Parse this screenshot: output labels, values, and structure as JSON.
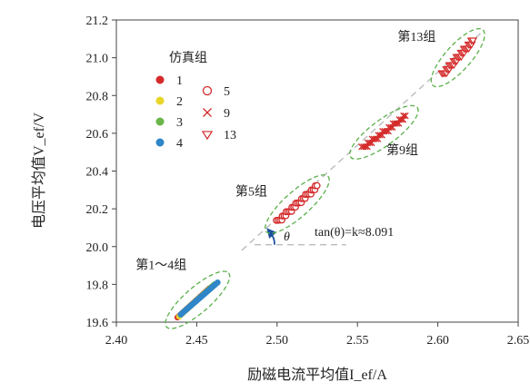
{
  "chart_data": {
    "type": "scatter",
    "xlabel": "励磁电流平均值I_ef/A",
    "ylabel": "电压平均值V_ef/V",
    "xlim": [
      2.4,
      2.65
    ],
    "ylim": [
      19.6,
      21.2
    ],
    "x_ticks": [
      "2.40",
      "2.45",
      "2.50",
      "2.55",
      "2.60",
      "2.65"
    ],
    "y_ticks": [
      "19.6",
      "19.8",
      "20.0",
      "20.2",
      "20.4",
      "20.6",
      "20.8",
      "21.0",
      "21.2"
    ],
    "legend": {
      "title": "仿真组",
      "entries": [
        {
          "label": "1",
          "marker": "circle-filled",
          "color": "#d42a2a"
        },
        {
          "label": "2",
          "marker": "circle-filled",
          "color": "#e8d52a"
        },
        {
          "label": "3",
          "marker": "circle-filled",
          "color": "#6ab44a"
        },
        {
          "label": "4",
          "marker": "circle-filled",
          "color": "#2f86c8"
        },
        {
          "label": "5",
          "marker": "circle-open",
          "color": "#d42a2a"
        },
        {
          "label": "9",
          "marker": "cross",
          "color": "#d42a2a"
        },
        {
          "label": "13",
          "marker": "triangle-open",
          "color": "#d42a2a"
        }
      ]
    },
    "series": [
      {
        "name": "1",
        "marker": "circle-filled",
        "color": "#d42a2a",
        "x_range": [
          2.438,
          2.458
        ],
        "y_range": [
          19.625,
          19.78
        ]
      },
      {
        "name": "2",
        "marker": "circle-filled",
        "color": "#e8d52a",
        "x_range": [
          2.439,
          2.459
        ],
        "y_range": [
          19.63,
          19.785
        ]
      },
      {
        "name": "3",
        "marker": "circle-filled",
        "color": "#6ab44a",
        "x_range": [
          2.44,
          2.461
        ],
        "y_range": [
          19.64,
          19.8
        ]
      },
      {
        "name": "4",
        "marker": "circle-filled",
        "color": "#2f86c8",
        "x_range": [
          2.44,
          2.463
        ],
        "y_range": [
          19.64,
          19.81
        ]
      },
      {
        "name": "5",
        "marker": "circle-open",
        "color": "#d42a2a",
        "x_range": [
          2.5,
          2.525
        ],
        "y_range": [
          20.13,
          20.32
        ]
      },
      {
        "name": "9",
        "marker": "cross",
        "color": "#d42a2a",
        "x_range": [
          2.553,
          2.58
        ],
        "y_range": [
          20.52,
          20.69
        ]
      },
      {
        "name": "13",
        "marker": "triangle-open",
        "color": "#d42a2a",
        "x_range": [
          2.603,
          2.622
        ],
        "y_range": [
          20.91,
          21.09
        ]
      }
    ],
    "group_labels": [
      {
        "text": "第1～4组",
        "x": 2.412,
        "y": 19.88
      },
      {
        "text": "第5组",
        "x": 2.474,
        "y": 20.27
      },
      {
        "text": "第9组",
        "x": 2.568,
        "y": 20.49
      },
      {
        "text": "第13组",
        "x": 2.575,
        "y": 21.09
      }
    ],
    "annotation": {
      "text": "tan(θ)=k≈8.091",
      "angle_symbol": "θ",
      "slope_k": 8.091
    }
  }
}
